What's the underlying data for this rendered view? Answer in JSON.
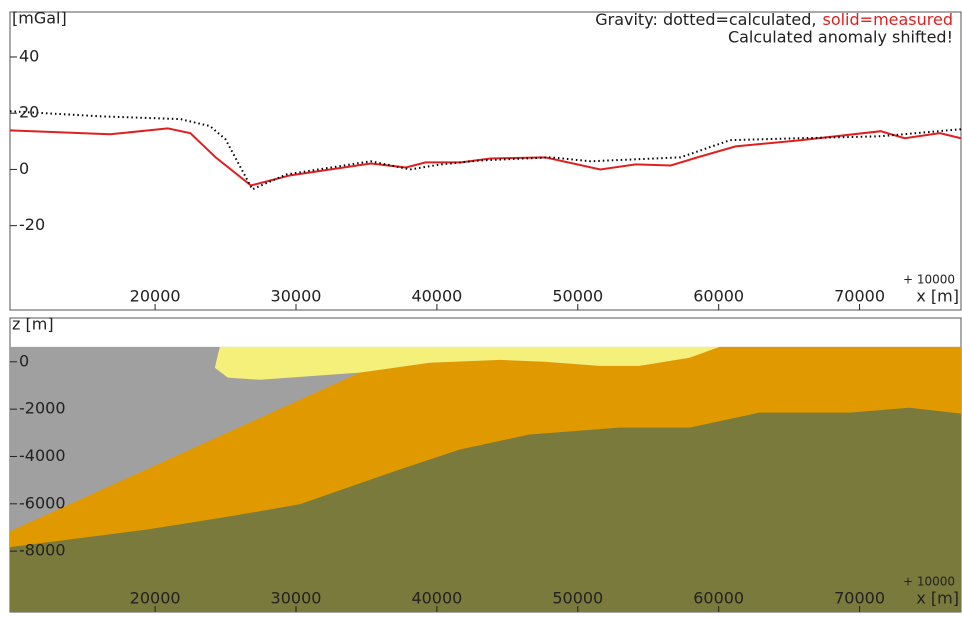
{
  "chart_data": [
    {
      "type": "line",
      "ylabel": "[mGal]",
      "annotations": [
        "Gravity: dotted=calculated,",
        "solid=measured",
        "Calculated anomaly shifted!"
      ],
      "x_offset_label": "+ 10000",
      "xlabel": "x [m]",
      "xlim": [
        9700,
        77200
      ],
      "ylim": [
        -50,
        56
      ],
      "xticks": [
        20000,
        30000,
        40000,
        50000,
        60000,
        70000
      ],
      "yticks": [
        -20,
        0,
        20,
        40
      ],
      "series": [
        {
          "name": "measured",
          "color": "#e02020",
          "style": "solid",
          "x": [
            9700,
            16800,
            20900,
            22500,
            24300,
            26800,
            29600,
            35300,
            37800,
            39200,
            41700,
            43800,
            47700,
            51600,
            54100,
            56600,
            58700,
            61200,
            65800,
            71500,
            73200,
            75700,
            77200
          ],
          "values": [
            13.9,
            12.5,
            14.6,
            12.9,
            4.3,
            -5.7,
            -2.1,
            2.1,
            0.7,
            2.5,
            2.5,
            3.9,
            4.3,
            0,
            1.8,
            1.4,
            4.6,
            8.2,
            10.4,
            13.6,
            11.1,
            12.9,
            11.1
          ]
        },
        {
          "name": "calculated",
          "color": "#000000",
          "style": "dotted",
          "x": [
            9700,
            16100,
            21800,
            23900,
            25000,
            26900,
            29300,
            35300,
            38100,
            40300,
            43100,
            48100,
            50900,
            57300,
            60800,
            65800,
            71500,
            77200
          ],
          "values": [
            20.7,
            18.9,
            17.9,
            15.4,
            10.7,
            -7.1,
            -1.8,
            2.9,
            0,
            1.8,
            3.2,
            4.3,
            2.9,
            4.3,
            10.4,
            11.1,
            11.8,
            14.3
          ]
        }
      ]
    },
    {
      "type": "area",
      "ylabel": "z [m]",
      "x_offset_label": "+ 10000",
      "xlabel": "x [m]",
      "xlim": [
        9700,
        77200
      ],
      "ylim": [
        -10570,
        1850
      ],
      "xticks": [
        20000,
        30000,
        40000,
        50000,
        60000,
        70000
      ],
      "yticks": [
        0,
        -2000,
        -4000,
        -6000,
        -8000
      ],
      "series": [
        {
          "color": "#a0a0a0",
          "x": [
            9700,
            77200,
            77200,
            9700
          ],
          "values": [
            630,
            630,
            -10570,
            -10570
          ]
        },
        {
          "color": "#e09a00",
          "x": [
            9700,
            34520,
            39490,
            44450,
            47640,
            51540,
            54380,
            57930,
            60060,
            77200,
            77200,
            9700
          ],
          "values": [
            -7160,
            -460,
            -40,
            80,
            0,
            -170,
            -170,
            170,
            630,
            630,
            -10570,
            -10570
          ]
        },
        {
          "color": "#7a7a3c",
          "x": [
            9700,
            19630,
            25300,
            30270,
            37360,
            41610,
            46580,
            52960,
            57930,
            62890,
            69280,
            73530,
            77200,
            77200,
            9700
          ],
          "values": [
            -7830,
            -7070,
            -6530,
            -6020,
            -4550,
            -3710,
            -3070,
            -2780,
            -2780,
            -2150,
            -2150,
            -1940,
            -2190,
            -10570,
            -10570
          ]
        },
        {
          "color": "#f5f07a",
          "x": [
            24590,
            24240,
            25160,
            27430,
            34520,
            39490,
            44450,
            47640,
            51540,
            54380,
            57930,
            60060
          ],
          "values": [
            630,
            -250,
            -670,
            -760,
            -460,
            -40,
            80,
            0,
            -170,
            -170,
            170,
            630
          ]
        }
      ]
    }
  ]
}
